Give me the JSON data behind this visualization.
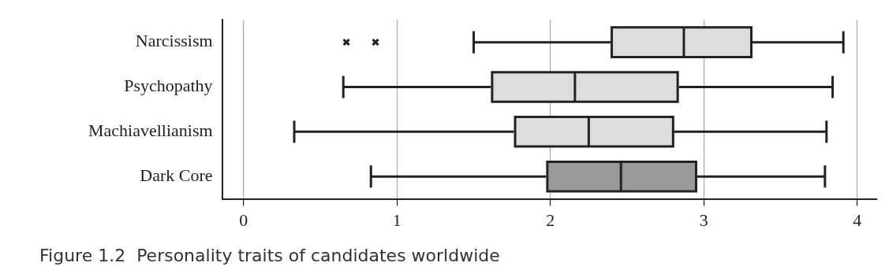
{
  "chart_data": {
    "type": "box",
    "orientation": "horizontal",
    "title": "Figure 1.2  Personality traits of candidates worldwide",
    "categories": [
      "Narcissism",
      "Psychopathy",
      "Machiavellianism",
      "Dark Core"
    ],
    "boxes": [
      {
        "low": 1.5,
        "q1": 2.4,
        "median": 2.87,
        "q3": 3.31,
        "high": 3.91,
        "outliers": [
          0.67,
          0.86
        ]
      },
      {
        "low": 0.65,
        "q1": 1.62,
        "median": 2.16,
        "q3": 2.83,
        "high": 3.84
      },
      {
        "low": 0.33,
        "q1": 1.77,
        "median": 2.25,
        "q3": 2.8,
        "high": 3.8
      },
      {
        "low": 0.83,
        "q1": 1.98,
        "median": 2.46,
        "q3": 2.95,
        "high": 3.79
      }
    ],
    "colors": [
      "#dcdddf",
      "#dcdddf",
      "#dcdddf",
      "#999a9c"
    ],
    "xlim": [
      -0.14,
      4.13
    ],
    "xticks": [
      0,
      1,
      2,
      3,
      4
    ],
    "grid": "x"
  }
}
